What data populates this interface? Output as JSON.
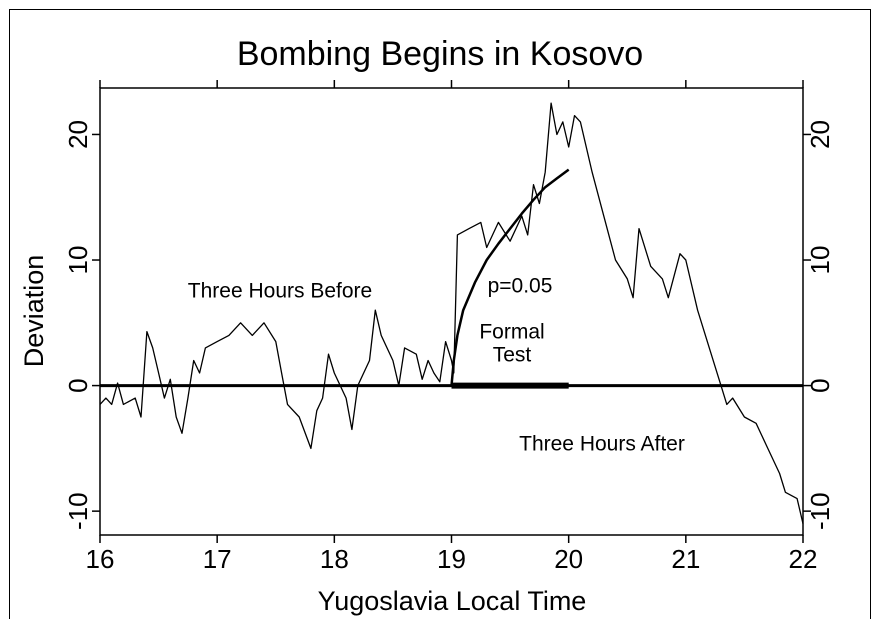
{
  "chart_data": {
    "type": "line",
    "title": "Bombing Begins in Kosovo",
    "x_label": "Yugoslavia Local Time",
    "y_label": "Deviation",
    "annotations": [
      "Three Hours Before",
      "p=0.05",
      "Formal",
      "Test",
      "Three Hours After"
    ],
    "xlim": [
      16,
      22
    ],
    "xticks": [
      16,
      17,
      18,
      19,
      20,
      21,
      22
    ],
    "ylim": [
      -11.9,
      23.7
    ],
    "yticks": [
      -10,
      0,
      10,
      20
    ],
    "hline": 0,
    "series": [
      {
        "color": "#000000",
        "width": 1.3,
        "x": [
          16.0,
          16.05,
          16.1,
          16.15,
          16.2,
          16.3,
          16.35,
          16.4,
          16.45,
          16.5,
          16.55,
          16.6,
          16.65,
          16.7,
          16.75,
          16.8,
          16.85,
          16.9,
          17.0,
          17.1,
          17.2,
          17.3,
          17.4,
          17.5,
          17.55,
          17.6,
          17.7,
          17.8,
          17.85,
          17.9,
          17.95,
          18.0,
          18.1,
          18.15,
          18.2,
          18.3,
          18.35,
          18.4,
          18.5,
          18.55,
          18.6,
          18.7,
          18.75,
          18.8,
          18.85,
          18.9,
          18.95,
          19.0,
          19.02,
          19.05,
          19.15,
          19.25,
          19.3,
          19.4,
          19.5,
          19.6,
          19.65,
          19.7,
          19.75,
          19.8,
          19.85,
          19.9,
          19.95,
          20.0,
          20.05,
          20.1,
          20.2,
          20.3,
          20.4,
          20.5,
          20.55,
          20.6,
          20.7,
          20.8,
          20.85,
          20.95,
          21.0,
          21.1,
          21.2,
          21.3,
          21.35,
          21.4,
          21.5,
          21.6,
          21.7,
          21.8,
          21.85,
          21.95,
          22.0
        ],
        "values": [
          -1.5,
          -1,
          -1.5,
          0.2,
          -1.5,
          -1,
          -2.5,
          4.3,
          3,
          1,
          -1,
          0.5,
          -2.5,
          -3.8,
          -1,
          2,
          1,
          3,
          3.5,
          4,
          5,
          4,
          5,
          3.5,
          1,
          -1.5,
          -2.5,
          -5,
          -2,
          -1,
          2.5,
          1,
          -1,
          -3.5,
          0,
          2,
          6,
          4,
          2,
          0,
          3,
          2.5,
          0.5,
          2,
          1,
          0.3,
          3.5,
          2,
          1,
          12,
          12.5,
          13,
          11,
          13,
          11.5,
          13.5,
          12,
          16,
          14.5,
          17,
          22.5,
          20,
          21,
          19,
          21.5,
          21,
          17,
          13.5,
          10,
          8.5,
          7,
          12.5,
          9.5,
          8.5,
          7,
          10.5,
          10,
          6,
          3,
          0,
          -1.5,
          -1,
          -2.5,
          -3,
          -5,
          -7,
          -8.5,
          -9,
          -11
        ]
      },
      {
        "color": "#000000",
        "width": 2.5,
        "x": [
          19.0,
          19.02,
          19.05,
          19.1,
          19.2,
          19.3,
          19.4,
          19.5,
          19.6,
          19.7,
          19.8,
          19.9,
          20.0
        ],
        "values": [
          0,
          2,
          4,
          6,
          8.2,
          10,
          11.3,
          12.5,
          13.7,
          14.8,
          15.8,
          16.5,
          17.2
        ]
      },
      {
        "color": "#000000",
        "width": 6,
        "x": [
          19.0,
          20.0
        ],
        "values": [
          0,
          0
        ]
      }
    ]
  }
}
